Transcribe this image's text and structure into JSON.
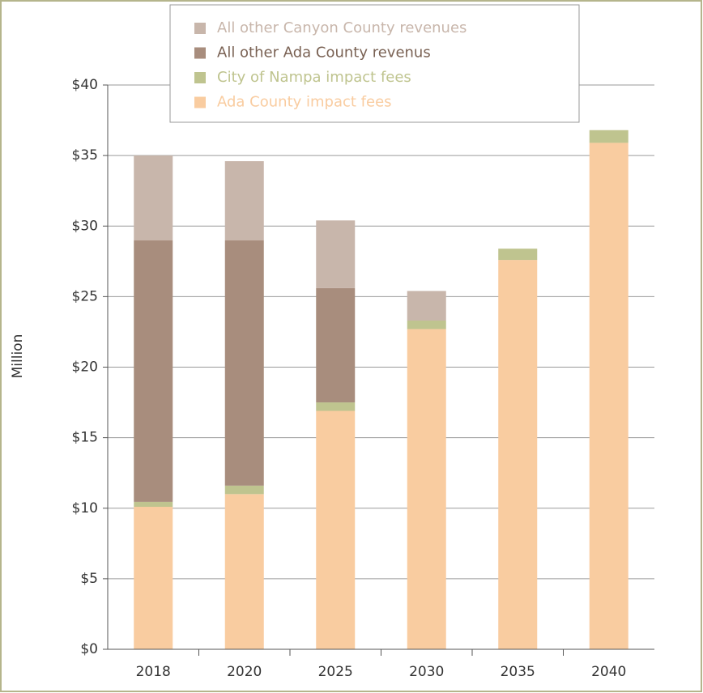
{
  "chart_data": {
    "type": "stacked_bar",
    "y_label": "Million",
    "categories": [
      "2018",
      "2020",
      "2025",
      "2030",
      "2035",
      "2040"
    ],
    "series": [
      {
        "name": "Ada County impact fees",
        "color": "#f9cca0",
        "values": [
          10.1,
          11.0,
          16.9,
          22.7,
          27.6,
          35.9
        ]
      },
      {
        "name": "City of Nampa impact fees",
        "color": "#bfc48f",
        "values": [
          0.35,
          0.6,
          0.6,
          0.6,
          0.8,
          0.9
        ]
      },
      {
        "name": "All other Ada County revenus",
        "color": "#a88d7d",
        "values": [
          18.55,
          17.4,
          8.1,
          0,
          0,
          0
        ]
      },
      {
        "name": "All other Canyon County revenues",
        "color": "#c8b6ab",
        "values": [
          6.0,
          5.6,
          4.8,
          2.1,
          0,
          0
        ]
      }
    ],
    "ylim": [
      0,
      40
    ],
    "yticks": [
      {
        "value": 0,
        "label": "$0"
      },
      {
        "value": 5,
        "label": "$5"
      },
      {
        "value": 10,
        "label": "$10"
      },
      {
        "value": 15,
        "label": "$15"
      },
      {
        "value": 20,
        "label": "$20"
      },
      {
        "value": 25,
        "label": "$25"
      },
      {
        "value": 30,
        "label": "$30"
      },
      {
        "value": 35,
        "label": "$35"
      },
      {
        "value": 40,
        "label": "$40"
      }
    ],
    "grid": true
  }
}
